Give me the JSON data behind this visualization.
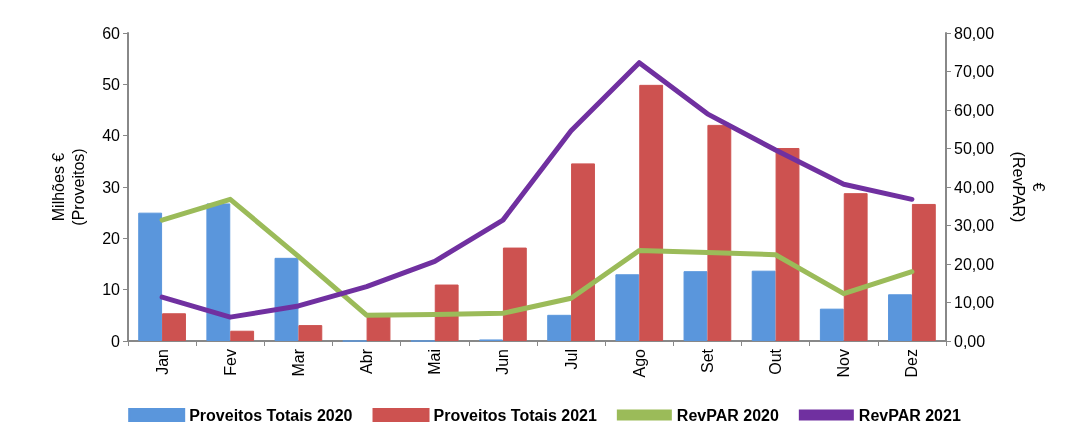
{
  "chart_data": {
    "type": "bar",
    "categories": [
      "Jan",
      "Fev",
      "Mar",
      "Abr",
      "Mai",
      "Jun",
      "Jul",
      "Ago",
      "Set",
      "Out",
      "Nov",
      "Dez"
    ],
    "ylabel": "Milhões €\n(Proveitos)",
    "y2label": "€\n(RevPAR)",
    "series": [
      {
        "name": "Proveitos Totais 2020",
        "color": "#5a96dc",
        "values": [
          25,
          26.8,
          16.2,
          0,
          0,
          0.3,
          5.1,
          13,
          13.6,
          13.7,
          6.3,
          9.1
        ]
      },
      {
        "name": "Proveitos Totais 2021",
        "color": "#cd5250",
        "values": [
          5.4,
          2,
          3.1,
          4.9,
          11,
          18.2,
          34.6,
          49.9,
          42.1,
          37.6,
          28.8,
          26.7
        ]
      },
      {
        "name": "RevPAR 2020",
        "type": "line",
        "axis": "y2",
        "color": "#9bbb59",
        "values": [
          31.4,
          36.8,
          22,
          6.7,
          6.9,
          7.2,
          11.1,
          23.5,
          23,
          22.4,
          12.3,
          18
        ]
      },
      {
        "name": "RevPAR 2021",
        "type": "line",
        "axis": "y2",
        "color": "#7030a0",
        "values": [
          11.4,
          6.2,
          9.1,
          14.1,
          20.7,
          31.4,
          54.6,
          72.3,
          59,
          49.6,
          40.7,
          36.8
        ]
      }
    ],
    "ylim": [
      0,
      60
    ],
    "yticks": [
      0,
      10,
      20,
      30,
      40,
      50,
      60
    ],
    "y2lim": [
      0,
      80
    ],
    "y2ticks": [
      {
        "value": 0,
        "label": "0,00"
      },
      {
        "value": 10,
        "label": "10,00"
      },
      {
        "value": 20,
        "label": "20,00"
      },
      {
        "value": 30,
        "label": "30,00"
      },
      {
        "value": 40,
        "label": "40,00"
      },
      {
        "value": 50,
        "label": "50,00"
      },
      {
        "value": 60,
        "label": "60,00"
      },
      {
        "value": 70,
        "label": "70,00"
      },
      {
        "value": 80,
        "label": "80,00"
      }
    ],
    "legend": "bottom",
    "grid": false,
    "marker": "none",
    "line_style": "solid"
  }
}
